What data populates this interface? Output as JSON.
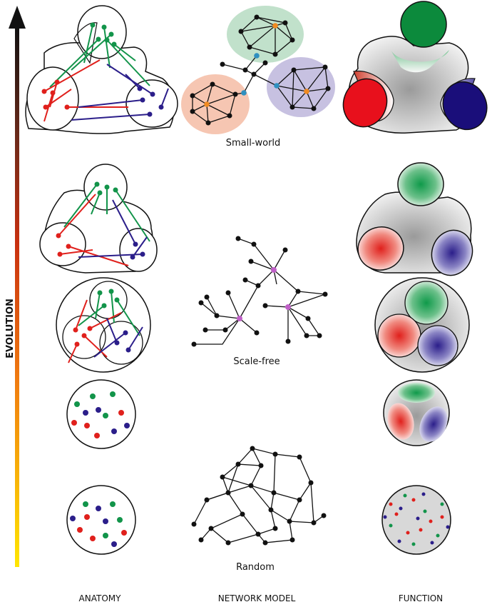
{
  "axis": {
    "label": "EVOLUTION"
  },
  "columns": {
    "anatomy": "ANATOMY",
    "network": "NETWORK MODEL",
    "function": "FUNCTION"
  },
  "models": {
    "small_world": "Small-world",
    "scale_free": "Scale-free",
    "random": "Random"
  },
  "colors": {
    "green": "#12944a",
    "red": "#e0201c",
    "blue": "#2b1e8a",
    "hub": "#c060c8",
    "bridge": "#2f90c0",
    "local_hub": "#f08a20"
  }
}
